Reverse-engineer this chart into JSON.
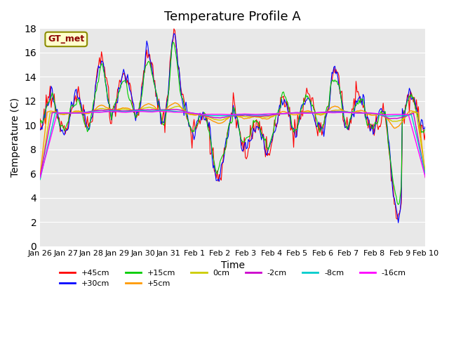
{
  "title": "Temperature Profile A",
  "xlabel": "Time",
  "ylabel": "Temperature (C)",
  "ylim": [
    0,
    18
  ],
  "yticks": [
    0,
    2,
    4,
    6,
    8,
    10,
    12,
    14,
    16,
    18
  ],
  "x_labels": [
    "Jan 26",
    "Jan 27",
    "Jan 28",
    "Jan 29",
    "Jan 30",
    "Jan 31",
    "Feb 1",
    "Feb 2",
    "Feb 3",
    "Feb 4",
    "Feb 5",
    "Feb 6",
    "Feb 7",
    "Feb 8",
    "Feb 9",
    "Feb 10"
  ],
  "annotation_text": "GT_met",
  "series_colors": {
    "+45cm": "#ff0000",
    "+30cm": "#0000ff",
    "+15cm": "#00cc00",
    "+5cm": "#ff9900",
    "0cm": "#cccc00",
    "-2cm": "#cc00cc",
    "-8cm": "#00cccc",
    "-16cm": "#ff00ff"
  },
  "legend_order": [
    "+45cm",
    "+30cm",
    "+15cm",
    "+5cm",
    "0cm",
    "-2cm",
    "-8cm",
    "-16cm"
  ],
  "plot_bg_color": "#e8e8e8",
  "title_fontsize": 13,
  "label_fontsize": 10
}
